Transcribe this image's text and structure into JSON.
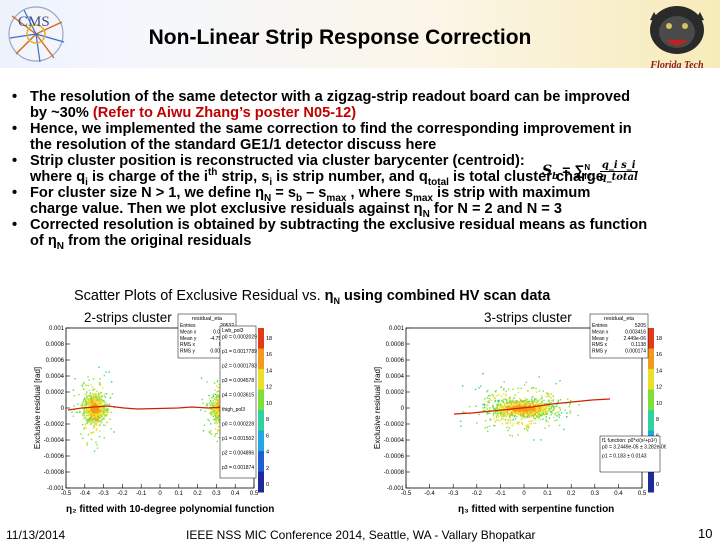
{
  "header": {
    "title": "Non-Linear Strip Response Correction",
    "logo_left_text": "CMS",
    "logo_right_text": "Florida Tech"
  },
  "bullets": [
    {
      "lines": [
        {
          "segments": [
            {
              "text": "The resolution of the same detector with a zigzag-strip readout board can be improved",
              "color": "black"
            }
          ]
        },
        {
          "segments": [
            {
              "text": "by ~30% ",
              "color": "black"
            },
            {
              "text": "(Refer to Aiwu Zhang’s poster N05-12)",
              "color": "red"
            }
          ]
        }
      ]
    },
    {
      "lines": [
        {
          "segments": [
            {
              "text": "Hence, we implemented the same correction to find the corresponding improvement in",
              "color": "black"
            }
          ]
        },
        {
          "segments": [
            {
              "text": "the resolution of the standard GE1/1 detector discuss here",
              "color": "black"
            }
          ]
        }
      ]
    },
    {
      "lines": [
        {
          "segments": [
            {
              "text": "Strip cluster position is reconstructed via cluster barycenter (centroid):",
              "color": "black"
            }
          ]
        },
        {
          "segments": [
            {
              "text": "where q",
              "color": "black"
            },
            {
              "text": "i",
              "color": "black",
              "sub": true
            },
            {
              "text": " is charge of the i",
              "color": "black"
            },
            {
              "text": "th",
              "color": "black",
              "sup": true
            },
            {
              "text": " strip, s",
              "color": "black"
            },
            {
              "text": "i",
              "color": "black",
              "sub": true
            },
            {
              "text": " is strip number, and q",
              "color": "black"
            },
            {
              "text": "total",
              "color": "black",
              "sub": true
            },
            {
              "text": " is total cluster charge",
              "color": "black"
            }
          ]
        }
      ]
    },
    {
      "lines": [
        {
          "segments": [
            {
              "text": "For cluster size N > 1, we define η",
              "color": "black"
            },
            {
              "text": "N",
              "color": "black",
              "sub": true
            },
            {
              "text": " = s",
              "color": "black"
            },
            {
              "text": "b",
              "color": "black",
              "sub": true
            },
            {
              "text": " – s",
              "color": "black"
            },
            {
              "text": "max",
              "color": "black",
              "sub": true
            },
            {
              "text": " , where s",
              "color": "black"
            },
            {
              "text": "max",
              "color": "black",
              "sub": true
            },
            {
              "text": " is strip with maximum",
              "color": "black"
            }
          ]
        },
        {
          "segments": [
            {
              "text": "charge value. Then we plot exclusive residuals against η",
              "color": "black"
            },
            {
              "text": "N",
              "color": "black",
              "sub": true
            },
            {
              "text": " for N = 2 and N = 3",
              "color": "black"
            }
          ]
        }
      ]
    },
    {
      "lines": [
        {
          "segments": [
            {
              "text": "Corrected resolution is obtained by subtracting the exclusive residual means as function",
              "color": "black"
            }
          ]
        },
        {
          "segments": [
            {
              "text": "of η",
              "color": "black"
            },
            {
              "text": "N",
              "color": "black",
              "sub": true
            },
            {
              "text": " from the original residuals",
              "color": "black"
            }
          ]
        }
      ]
    }
  ],
  "formula": {
    "lhs": "S",
    "lhs_sub": "b",
    "eq": " = ∑",
    "sum_sub": "i=1",
    "sum_sup": "N",
    "num": "q_i s_i",
    "den": "q_total"
  },
  "scatter_heading": {
    "prefix": "Scatter Plots of Exclusive Residual vs. ",
    "eta": "η",
    "eta_sub": "N",
    "suffix": " using combined HV scan data"
  },
  "plots": [
    {
      "label": "2-strips cluster",
      "caption": "η₂ fitted with 10-degree polynomial function",
      "ylabel": "Exclusive residual [rad]",
      "xlabel": "η (2-strips cluster)",
      "y_ticks": [
        "0.001",
        "0.0008",
        "0.0006",
        "0.0004",
        "0.0002",
        "0",
        "-0.0002",
        "-0.0004",
        "-0.0006",
        "-0.0008",
        "-0.001"
      ],
      "x_ticks": [
        "-0.5",
        "-0.4",
        "-0.3",
        "-0.2",
        "-0.1",
        "0",
        "0.1",
        "0.2",
        "0.3",
        "0.4",
        "0.5"
      ],
      "color_ticks": [
        "18",
        "16",
        "14",
        "12",
        "10",
        "8",
        "6",
        "4",
        "2",
        "0"
      ],
      "stats": {
        "title": "residual_eta",
        "rows": [
          [
            "Entries",
            "20532"
          ],
          [
            "Mean x",
            "0.005201"
          ],
          [
            "Mean y",
            "-4.756e-06"
          ],
          [
            "RMS x",
            "0.3244"
          ],
          [
            "RMS y",
            "0.0001524"
          ]
        ]
      },
      "fit": {
        "title": "Lwb_pol3",
        "rows": [
          "p0 = 0.0002029",
          "p1 = 0.0017789",
          "p2 = 0.0001783",
          "p3 = 0.004578",
          "p4 = 0.003615",
          "thigh_pol3",
          "p0 = 0.000228",
          "p1 = 0.001502",
          "p2 = 0.004896",
          "p3 = 0.001874"
        ]
      }
    },
    {
      "label": "3-strips cluster",
      "caption": "η₃ fitted with serpentine function",
      "ylabel": "Exclusive residual [rad]",
      "xlabel": "η₃ (3 strip cluster)",
      "y_ticks": [
        "0.001",
        "0.0008",
        "0.0006",
        "0.0004",
        "0.0002",
        "0",
        "-0.0002",
        "-0.0004",
        "-0.0006",
        "-0.0008",
        "-0.001"
      ],
      "x_ticks": [
        "-0.5",
        "-0.4",
        "-0.3",
        "-0.2",
        "-0.1",
        "0",
        "0.1",
        "0.2",
        "0.3",
        "0.4",
        "0.5"
      ],
      "color_ticks": [
        "18",
        "16",
        "14",
        "12",
        "10",
        "8",
        "6",
        "4",
        "2",
        "0"
      ],
      "stats": {
        "title": "residual_eta",
        "rows": [
          [
            "Entries",
            "5205"
          ],
          [
            "Mean x",
            "0.003416"
          ],
          [
            "Mean y",
            "2.449e-06"
          ],
          [
            "RMS x",
            "0.1138"
          ],
          [
            "RMS y",
            "0.000174"
          ]
        ]
      },
      "fit": {
        "title": "f1 function: p0*x/(x²+p1²)",
        "rows": [
          "p0 = 3.2449e-05 ± 3.282e-06",
          "p1 = 0.183 ± 0.0143"
        ]
      }
    }
  ],
  "footer": {
    "date": "11/13/2014",
    "conference": "IEEE NSS MIC Conference 2014, Seattle, WA - Vallary Bhopatkar",
    "page": "10"
  },
  "colors": {
    "red_text": "#c00000",
    "fit_line": "#cc2200",
    "header_gold": "#f7ebb9"
  }
}
